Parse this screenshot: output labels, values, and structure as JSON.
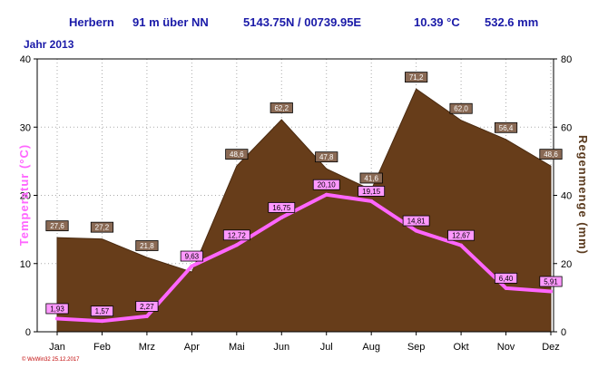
{
  "header": {
    "station": "Herbern",
    "elevation": "91 m über NN",
    "coords": "5143.75N / 00739.95E",
    "mean_temp": "10.39 °C",
    "total_precip": "532.6 mm",
    "year": "Jahr 2013"
  },
  "footer": {
    "credit": "© WxWin32 25.12.2017"
  },
  "colors": {
    "header_text": "#1a1aa8",
    "precip_fill": "#673d1a",
    "temp_line": "#ff66ff",
    "precip_label_bg": "#8a6a55",
    "temp_label_bg": "#ff99ff"
  },
  "chart_data": {
    "type": "area",
    "categories": [
      "Jan",
      "Feb",
      "Mrz",
      "Apr",
      "Mai",
      "Jun",
      "Jul",
      "Aug",
      "Sep",
      "Okt",
      "Nov",
      "Dez"
    ],
    "y_left": {
      "label": "Temperatur (°C)",
      "ylim": [
        0,
        40
      ],
      "ticks": [
        0,
        10,
        20,
        30,
        40
      ]
    },
    "y_right": {
      "label": "Regenmenge (mm)",
      "ylim": [
        0,
        80
      ],
      "ticks": [
        0,
        20,
        40,
        60,
        80
      ]
    },
    "series": [
      {
        "type": "area",
        "axis": "right",
        "values": [
          27.6,
          27.2,
          21.8,
          17.5,
          48.6,
          62.2,
          47.8,
          41.6,
          71.2,
          62.0,
          56.4,
          48.6
        ],
        "labels": [
          "27,6",
          "27,2",
          "21,8",
          "",
          "48,6",
          "62,2",
          "47,8",
          "41,6",
          "71,2",
          "62,0",
          "56,4",
          "48,6"
        ]
      },
      {
        "type": "line",
        "axis": "left",
        "values": [
          1.93,
          1.57,
          2.27,
          9.63,
          12.72,
          16.75,
          20.1,
          19.15,
          14.81,
          12.67,
          6.4,
          5.91
        ],
        "labels": [
          "1,93",
          "1,57",
          "2,27",
          "9,63",
          "12,72",
          "16,75",
          "20,10",
          "19,15",
          "14,81",
          "12,67",
          "6,40",
          "5,91"
        ]
      }
    ]
  }
}
